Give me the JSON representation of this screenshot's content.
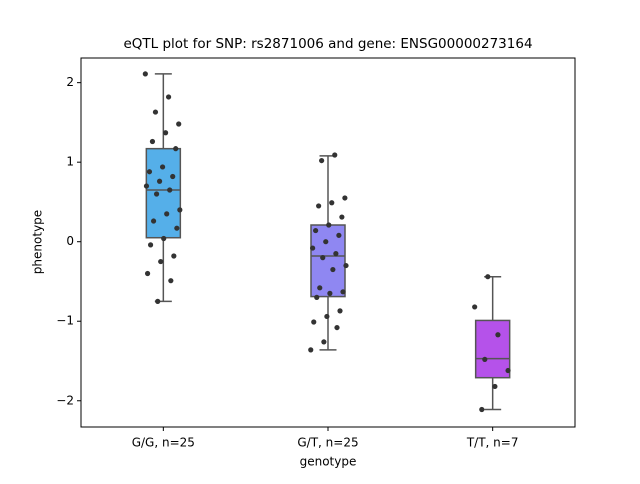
{
  "chart_data": {
    "type": "box",
    "title": "eQTL plot for SNP: rs2871006 and gene: ENSG00000273164",
    "xlabel": "genotype",
    "ylabel": "phenotype",
    "categories": [
      "G/G, n=25",
      "G/T, n=25",
      "T/T, n=7"
    ],
    "ylim": [
      -2.33,
      2.31
    ],
    "yticks": [
      {
        "value": -2,
        "label": "−2"
      },
      {
        "value": -1,
        "label": "−1"
      },
      0,
      1,
      2
    ],
    "boxes": [
      {
        "color": "#55afe9",
        "whisker_low": -0.75,
        "q1": 0.05,
        "median": 0.65,
        "q3": 1.17,
        "whisker_high": 2.11,
        "points": [
          2.11,
          1.82,
          1.63,
          1.48,
          1.37,
          1.26,
          1.17,
          0.94,
          0.88,
          0.82,
          0.76,
          0.7,
          0.65,
          0.6,
          0.4,
          0.35,
          0.26,
          0.17,
          0.04,
          -0.04,
          -0.18,
          -0.25,
          -0.4,
          -0.49,
          -0.75
        ]
      },
      {
        "color": "#8f87f2",
        "whisker_low": -1.36,
        "q1": -0.69,
        "median": -0.18,
        "q3": 0.21,
        "whisker_high": 1.08,
        "points": [
          1.09,
          1.02,
          0.55,
          0.49,
          0.45,
          0.31,
          0.21,
          0.14,
          0.08,
          0.0,
          -0.08,
          -0.15,
          -0.2,
          -0.3,
          -0.35,
          -0.58,
          -0.63,
          -0.65,
          -0.7,
          -0.87,
          -0.94,
          -1.01,
          -1.08,
          -1.26,
          -1.36
        ]
      },
      {
        "color": "#b552ea",
        "whisker_low": -2.11,
        "q1": -1.71,
        "median": -1.47,
        "q3": -0.99,
        "whisker_high": -0.44,
        "points": [
          -0.44,
          -0.82,
          -1.17,
          -1.48,
          -1.62,
          -1.82,
          -2.11
        ]
      }
    ]
  }
}
